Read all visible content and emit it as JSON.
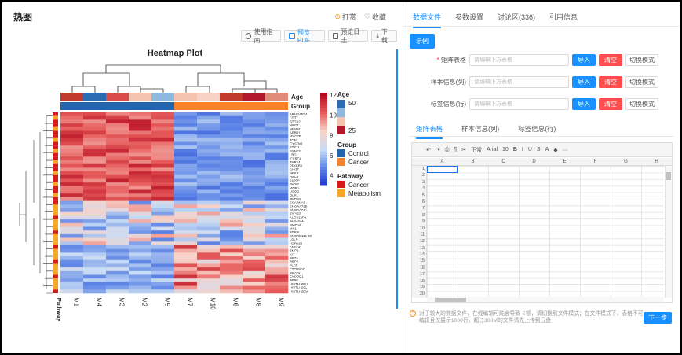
{
  "left": {
    "title": "热图",
    "reward": "打赏",
    "favorite": "收藏",
    "toolbar": [
      "使用指南",
      "预览PDF",
      "预览日志",
      "下载"
    ]
  },
  "heatmap": {
    "title": "Heatmap Plot",
    "columns": [
      "M1",
      "M4",
      "M3",
      "M2",
      "M5",
      "M7",
      "M10",
      "M6",
      "M8",
      "M9"
    ],
    "genes": [
      "ARHGAP24",
      "CST7",
      "STOX2",
      "NKG7",
      "NFAM1",
      "APBB1",
      "MYO7B",
      "TCN1",
      "CYSTM1",
      "STX11",
      "SYNE2",
      "LRG1",
      "IFCEF1",
      "THBS4",
      "PFKFB3",
      "CHI3T",
      "NFIL3",
      "RGL4",
      "S100P",
      "PADI2",
      "MNDA",
      "USOG",
      "OLR1",
      "OLFM4",
      "SCARNA5",
      "SNORA73B",
      "SNORA74A",
      "EIF4E3",
      "ALOX12P2",
      "SLC40A1",
      "CMPK2",
      "MX1",
      "EREG",
      "SNORD115-29",
      "LDLR",
      "HSPA1B",
      "ANXA2",
      "EMP1",
      "KIT",
      "CD74",
      "RBP4",
      "FLT3",
      "PTPRCAP",
      "BCAT1",
      "ENDOD1",
      "CD52",
      "HIST1H2BH",
      "HIST1H2BL",
      "HIST1H2BM"
    ],
    "age_label": "Age",
    "group_label": "Group",
    "pathway_label": "Pathway",
    "colorbar_ticks": [
      "12",
      "10",
      "8",
      "6",
      "4"
    ],
    "legend": {
      "age_title": "Age",
      "age_ticks": [
        "50",
        "25"
      ],
      "group_title": "Group",
      "group_items": [
        {
          "label": "Control",
          "color": "#2166ac"
        },
        {
          "label": "Cancer",
          "color": "#f4832b"
        }
      ],
      "pathway_title": "Pathway",
      "pathway_items": [
        {
          "label": "Cancer",
          "color": "#d7191c"
        },
        {
          "label": "Metabolism",
          "color": "#f5a623"
        }
      ]
    }
  },
  "right": {
    "tabs": [
      "数据文件",
      "参数设置",
      "讨论区(336)",
      "引用信息"
    ],
    "demo_button": "示例",
    "rows": [
      {
        "label": "矩阵表格",
        "required": true,
        "placeholder": "请编辑下方表格",
        "import": "导入",
        "clear": "清空",
        "switch": "切换模式"
      },
      {
        "label": "样本信息(列)",
        "required": false,
        "placeholder": "请编辑下方表格",
        "import": "导入",
        "clear": "清空",
        "switch": "切换模式"
      },
      {
        "label": "标签信息(行)",
        "required": false,
        "placeholder": "请编辑下方表格",
        "import": "导入",
        "clear": "清空",
        "switch": "切换模式"
      }
    ],
    "subtabs": [
      "矩阵表格",
      "样本信息(列)",
      "标签信息(行)"
    ],
    "sheet": {
      "toolbar": [
        "↶",
        "↷",
        "⎙",
        "¶",
        "✂",
        "正常",
        "Arial",
        "10",
        "B",
        "I",
        "U",
        "S",
        "A",
        "◆",
        "⋯"
      ],
      "col_headers": [
        "A",
        "B",
        "C",
        "D",
        "E",
        "F",
        "G",
        "H"
      ],
      "row_headers": [
        "1",
        "2",
        "3",
        "4",
        "5",
        "6",
        "7",
        "8",
        "9",
        "10",
        "11",
        "12",
        "13",
        "14",
        "15",
        "16",
        "17",
        "18",
        "19",
        "20"
      ]
    },
    "tip": "对于较大的数据文件，在线编辑可能会导致卡顿，请切换到文件模式；在文件模式下，表格不可编辑且仅展示1000行，超过100M的文件请先上传到云盘",
    "next_button": "下一步"
  }
}
